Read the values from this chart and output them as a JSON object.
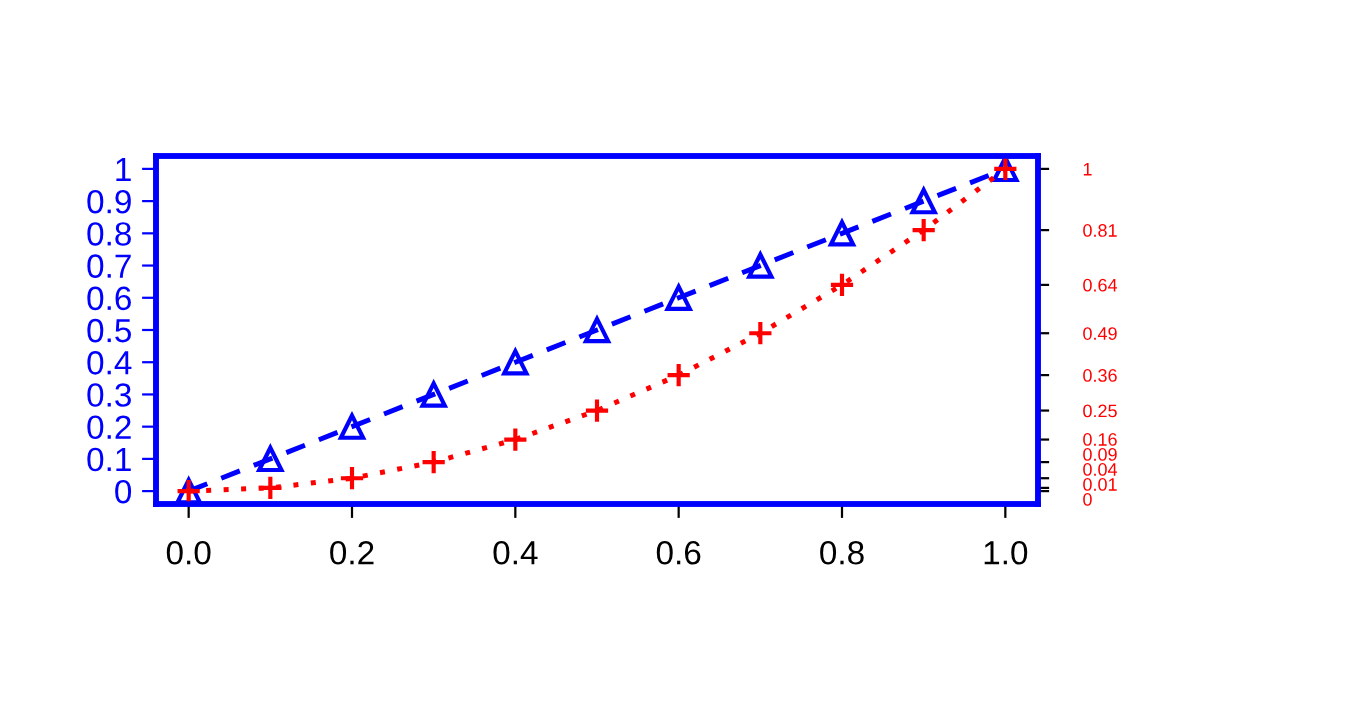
{
  "chart_data": {
    "type": "line",
    "x": [
      0,
      0.1,
      0.2,
      0.3,
      0.4,
      0.5,
      0.6,
      0.7,
      0.8,
      0.9,
      1.0
    ],
    "series": [
      {
        "color": "#0000ff",
        "values": [
          0,
          0.1,
          0.2,
          0.3,
          0.4,
          0.5,
          0.6,
          0.7,
          0.8,
          0.9,
          1.0
        ],
        "marker": "triangle",
        "line_style": "dashed"
      },
      {
        "color": "#ff0000",
        "values": [
          0,
          0.01,
          0.04,
          0.09,
          0.16,
          0.25,
          0.36,
          0.49,
          0.64,
          0.81,
          1.0
        ],
        "marker": "cross",
        "line_style": "dotted",
        "axis": "y2"
      }
    ],
    "xlim": [
      -0.04,
      1.04
    ],
    "xticks": [
      {
        "value": 0,
        "label": "0.0"
      },
      {
        "value": 0.2,
        "label": "0.2"
      },
      {
        "value": 0.4,
        "label": "0.4"
      },
      {
        "value": 0.6,
        "label": "0.6"
      },
      {
        "value": 0.8,
        "label": "0.8"
      },
      {
        "value": 1.0,
        "label": "1.0"
      }
    ],
    "ylim": [
      -0.04,
      1.04
    ],
    "yticks": [
      0,
      0.1,
      0.2,
      0.3,
      0.4,
      0.5,
      0.6,
      0.7,
      0.8,
      0.9,
      1
    ],
    "y2lim": [
      -0.04,
      1.04
    ],
    "y2ticks": [
      0,
      0.01,
      0.04,
      0.09,
      0.16,
      0.25,
      0.36,
      0.49,
      0.64,
      0.81,
      1
    ],
    "grid": false,
    "legend": false
  }
}
